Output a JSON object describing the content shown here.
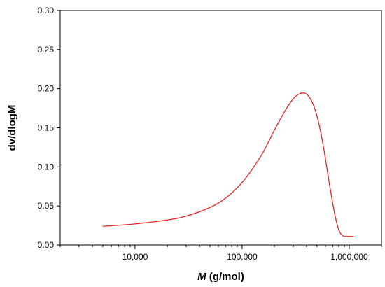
{
  "chart_data": {
    "type": "line",
    "xlabel_italic": "M",
    "xlabel_rest": " (g/mol)",
    "ylabel": "dv/dlogM",
    "x_scale": "log",
    "xlim": [
      2000,
      2000000
    ],
    "ylim": [
      0,
      0.3
    ],
    "x_tick_values": [
      10000,
      100000,
      1000000
    ],
    "x_tick_labels": [
      "10,000",
      "100,000",
      "1,000,000"
    ],
    "y_tick_values": [
      0,
      0.05,
      0.1,
      0.15,
      0.2,
      0.25,
      0.3
    ],
    "y_tick_labels": [
      "0.00",
      "0.05",
      "0.10",
      "0.15",
      "0.20",
      "0.25",
      "0.30"
    ],
    "grid": false,
    "line_color": "#ee2222",
    "series": [
      {
        "x": [
          5000,
          10000,
          20000,
          30000,
          50000,
          70000,
          100000,
          150000,
          200000,
          250000,
          300000,
          350000,
          400000,
          450000,
          500000,
          550000,
          600000,
          650000,
          700000,
          750000,
          800000,
          850000,
          900000,
          1000000,
          1100000
        ],
        "values": [
          0.024,
          0.027,
          0.032,
          0.037,
          0.048,
          0.06,
          0.08,
          0.114,
          0.147,
          0.171,
          0.187,
          0.194,
          0.193,
          0.183,
          0.165,
          0.14,
          0.11,
          0.08,
          0.054,
          0.033,
          0.019,
          0.013,
          0.011,
          0.011,
          0.011
        ]
      }
    ]
  }
}
